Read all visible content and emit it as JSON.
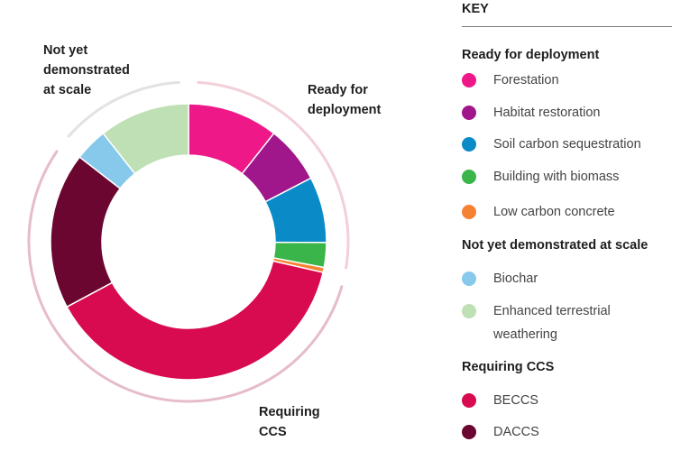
{
  "chart_data": {
    "type": "pie",
    "style": "donut",
    "legend_title": "KEY",
    "legend_placement": "right",
    "groups": [
      {
        "name": "Ready for deployment",
        "label": "Ready for\ndeployment",
        "color": "#f2d0d8"
      },
      {
        "name": "Not yet demonstrated at scale",
        "label": "Not yet\ndemonstrated\nat scale",
        "color": "#e2e2e2"
      },
      {
        "name": "Requiring CCS",
        "label": "Requiring\nCCS",
        "color": "#e6bcc8"
      }
    ],
    "slices": [
      {
        "name": "Forestation",
        "value": 11,
        "group": 0,
        "color": "#ee1889"
      },
      {
        "name": "Habitat restoration",
        "value": 7,
        "group": 0,
        "color": "#a0178b"
      },
      {
        "name": "Soil carbon sequestration",
        "value": 8,
        "group": 0,
        "color": "#0a8bc8"
      },
      {
        "name": "Building with biomass",
        "value": 3,
        "group": 0,
        "color": "#3ab54a"
      },
      {
        "name": "Low carbon concrete",
        "value": 0.6,
        "group": 0,
        "color": "#f58232"
      },
      {
        "name": "BECCS",
        "value": 40,
        "group": 2,
        "color": "#d80a50"
      },
      {
        "name": "DACCS",
        "value": 19,
        "group": 2,
        "color": "#6a0630"
      },
      {
        "name": "Biochar",
        "value": 4,
        "group": 1,
        "color": "#86c9ea"
      },
      {
        "name": "Enhanced terrestrial weathering",
        "value": 11,
        "group": 1,
        "color": "#bfdfb4"
      }
    ],
    "legend": [
      {
        "heading": "Ready for deployment",
        "items": [
          {
            "label": "Forestation",
            "color": "#ee1889"
          },
          {
            "label": "Habitat restoration",
            "color": "#a0178b"
          },
          {
            "label": "Soil carbon sequestration",
            "color": "#0a8bc8"
          },
          {
            "label": "Building with biomass",
            "color": "#3ab54a"
          },
          {
            "label": "Low carbon concrete",
            "color": "#f58232"
          }
        ]
      },
      {
        "heading": "Not yet demonstrated at scale",
        "items": [
          {
            "label": "Biochar",
            "color": "#86c9ea"
          },
          {
            "label": "Enhanced terrestrial weathering",
            "color": "#bfdfb4"
          }
        ]
      },
      {
        "heading": "Requiring CCS",
        "items": [
          {
            "label": "BECCS",
            "color": "#d80a50"
          },
          {
            "label": "DACCS",
            "color": "#6a0630"
          }
        ]
      }
    ]
  }
}
